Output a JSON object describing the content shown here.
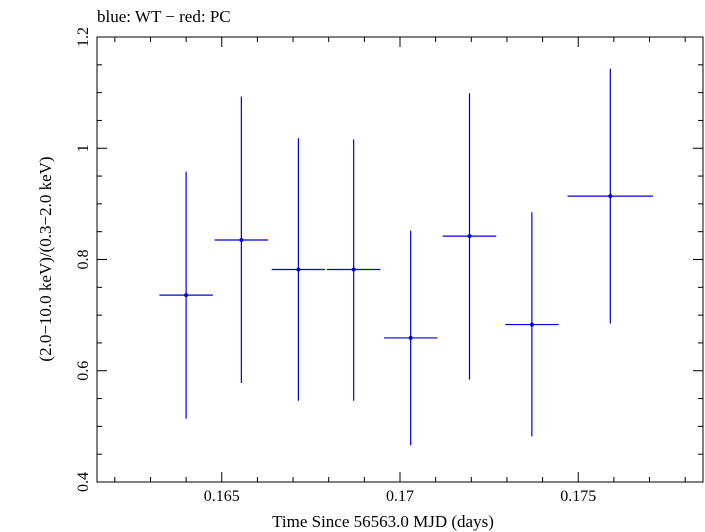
{
  "title": "blue: WT − red: PC",
  "chart_data": {
    "type": "scatter",
    "title": "blue: WT − red: PC",
    "xlabel": "Time Since 56563.0 MJD (days)",
    "ylabel": "(2.0−10.0 keV)/(0.3−2.0 keV)",
    "xlim": [
      0.1615,
      0.1785
    ],
    "ylim": [
      0.4,
      1.2
    ],
    "x_ticks": [
      {
        "value": 0.165,
        "label": "0.165"
      },
      {
        "value": 0.17,
        "label": "0.17"
      },
      {
        "value": 0.175,
        "label": "0.175"
      }
    ],
    "y_ticks": [
      {
        "value": 0.4,
        "label": "0.4"
      },
      {
        "value": 0.6,
        "label": "0.6"
      },
      {
        "value": 0.8,
        "label": "0.8"
      },
      {
        "value": 1.0,
        "label": "1"
      },
      {
        "value": 1.2,
        "label": "1.2"
      }
    ],
    "grid": false,
    "series": [
      {
        "color": "#0000dd",
        "points": [
          {
            "x": 0.164,
            "y": 0.736,
            "xerr": 0.00075,
            "ylo": 0.514,
            "yhi": 0.958
          },
          {
            "x": 0.16555,
            "y": 0.835,
            "xerr": 0.00075,
            "ylo": 0.578,
            "yhi": 1.093
          },
          {
            "x": 0.16715,
            "y": 0.782,
            "xerr": 0.00075,
            "ylo": 0.546,
            "yhi": 1.018
          },
          {
            "x": 0.1687,
            "y": 0.782,
            "xerr": 0.00075,
            "ylo": 0.546,
            "yhi": 1.016
          },
          {
            "x": 0.1703,
            "y": 0.659,
            "xerr": 0.00075,
            "ylo": 0.466,
            "yhi": 0.852
          },
          {
            "x": 0.17195,
            "y": 0.842,
            "xerr": 0.00075,
            "ylo": 0.584,
            "yhi": 1.099
          },
          {
            "x": 0.1737,
            "y": 0.683,
            "xerr": 0.00075,
            "ylo": 0.482,
            "yhi": 0.885
          },
          {
            "x": 0.1759,
            "y": 0.914,
            "xerr": 0.0012,
            "ylo": 0.685,
            "yhi": 1.143
          }
        ]
      }
    ]
  }
}
